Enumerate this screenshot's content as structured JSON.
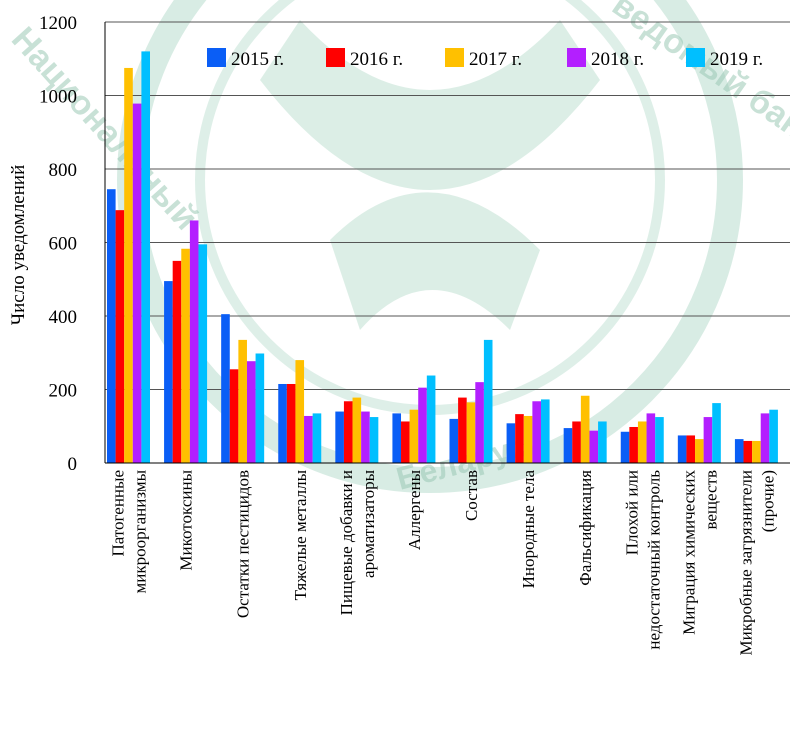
{
  "watermark": {
    "text_left": "Национальный",
    "text_right": "ведомый банк",
    "text_bottom": "Беларуси"
  },
  "chart_data": {
    "type": "bar",
    "ylabel": "Число уведомлений",
    "xlabel": "",
    "ylim": [
      0,
      1200
    ],
    "yticks": [
      0,
      200,
      400,
      600,
      800,
      1000,
      1200
    ],
    "grid": true,
    "legend_position": "top-right",
    "categories": [
      [
        "Патогенные",
        "микроорганизмы"
      ],
      [
        "Микотоксины"
      ],
      [
        "Остатки пестицидов"
      ],
      [
        "Тяжелые металлы"
      ],
      [
        "Пищевые добавки и",
        "ароматизаторы"
      ],
      [
        "Аллергены"
      ],
      [
        "Состав"
      ],
      [
        "Инородные тела"
      ],
      [
        "Фальсификация"
      ],
      [
        "Плохой или",
        "недостаточный  контроль"
      ],
      [
        "Миграция  химических",
        "веществ"
      ],
      [
        "Микробные загрязнители",
        "(прочие)"
      ]
    ],
    "series": [
      {
        "name": "2015 г.",
        "color": "#0a5ef6",
        "values": [
          745,
          495,
          405,
          215,
          140,
          135,
          120,
          108,
          95,
          85,
          75,
          65
        ]
      },
      {
        "name": "2016 г.",
        "color": "#ff0000",
        "values": [
          688,
          550,
          255,
          215,
          168,
          113,
          178,
          133,
          113,
          98,
          75,
          60
        ]
      },
      {
        "name": "2017 г.",
        "color": "#ffc000",
        "values": [
          1075,
          583,
          335,
          280,
          178,
          145,
          165,
          128,
          183,
          113,
          65,
          60
        ]
      },
      {
        "name": "2018 г.",
        "color": "#b31fff",
        "values": [
          978,
          660,
          277,
          128,
          140,
          205,
          220,
          168,
          88,
          135,
          125,
          135
        ]
      },
      {
        "name": "2019 г.",
        "color": "#00bfff",
        "values": [
          1120,
          595,
          298,
          135,
          125,
          238,
          335,
          173,
          113,
          125,
          163,
          145
        ]
      }
    ]
  }
}
